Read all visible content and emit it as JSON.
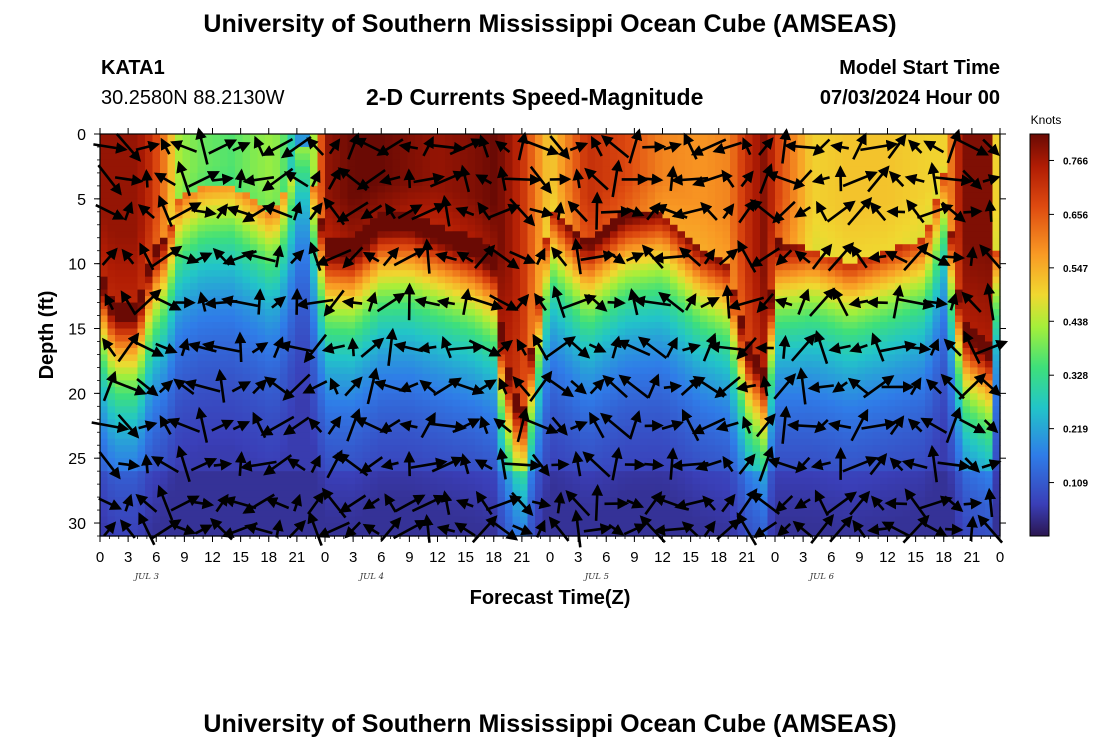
{
  "header": {
    "title_top": "University of Southern Mississippi Ocean Cube (AMSEAS)",
    "station": "KATA1",
    "coords": "30.2580N  88.2130W",
    "subtitle": "2-D Currents Speed-Magnitude",
    "model_label": "Model Start Time",
    "model_time": "07/03/2024 Hour 00",
    "title_bottom": "University of Southern Mississippi Ocean Cube (AMSEAS)"
  },
  "chart_data": {
    "type": "heatmap",
    "xlabel": "Forecast Time(Z)",
    "ylabel": "Depth (ft)",
    "x_ticks": [
      "0",
      "3",
      "6",
      "9",
      "12",
      "15",
      "18",
      "21",
      "0",
      "3",
      "6",
      "9",
      "12",
      "15",
      "18",
      "21",
      "0",
      "3",
      "6",
      "9",
      "12",
      "15",
      "18",
      "21",
      "0",
      "3",
      "6",
      "9",
      "12",
      "15",
      "18",
      "21",
      "0"
    ],
    "date_labels": [
      "JUL 3",
      "JUL 4",
      "JUL 5",
      "JUL 6"
    ],
    "y_ticks": [
      "0",
      "5",
      "10",
      "15",
      "20",
      "25",
      "30"
    ],
    "xlim_hours": [
      0,
      96
    ],
    "ylim": [
      0,
      31
    ],
    "colorbar": {
      "unit": "Knots",
      "ticks": [
        "0.766",
        "0.656",
        "0.547",
        "0.438",
        "0.328",
        "0.219",
        "0.109"
      ],
      "range": [
        0,
        0.82
      ]
    },
    "speed_profile_note": "mixed-layer high speed region",
    "surface_hours": [
      0,
      1.5,
      4,
      5.5,
      7,
      8.5,
      11,
      14,
      16.5,
      18.5,
      20,
      21,
      22,
      24,
      27,
      30,
      33,
      36,
      40,
      42,
      43,
      45,
      48,
      52,
      56,
      60,
      64,
      67,
      69,
      71,
      72,
      76,
      80,
      84,
      88,
      90,
      92,
      95,
      96
    ],
    "surface_depths": [
      10,
      13,
      13,
      9,
      8,
      5,
      4,
      4,
      5,
      6,
      4,
      1,
      1,
      8,
      8,
      6,
      6,
      7,
      8,
      9,
      16,
      22,
      6,
      8,
      6,
      6,
      9,
      10,
      16,
      18,
      8,
      9,
      10,
      9,
      8,
      3,
      14,
      16,
      4
    ],
    "surface_peak": [
      0.78,
      0.78,
      0.78,
      0.72,
      0.6,
      0.42,
      0.38,
      0.36,
      0.4,
      0.42,
      0.35,
      0.2,
      0.2,
      0.78,
      0.82,
      0.82,
      0.8,
      0.78,
      0.8,
      0.82,
      0.8,
      0.72,
      0.5,
      0.72,
      0.68,
      0.6,
      0.58,
      0.6,
      0.72,
      0.8,
      0.7,
      0.5,
      0.52,
      0.52,
      0.5,
      0.5,
      0.8,
      0.8,
      0.3
    ],
    "arrow_depths": [
      1,
      3.5,
      6,
      9.5,
      13,
      16.5,
      19.5,
      22.5,
      25.5,
      28.5,
      30.5
    ],
    "arrow_hour_step": 2,
    "arrow_direction_note": "current vectors drawn at grid points"
  }
}
